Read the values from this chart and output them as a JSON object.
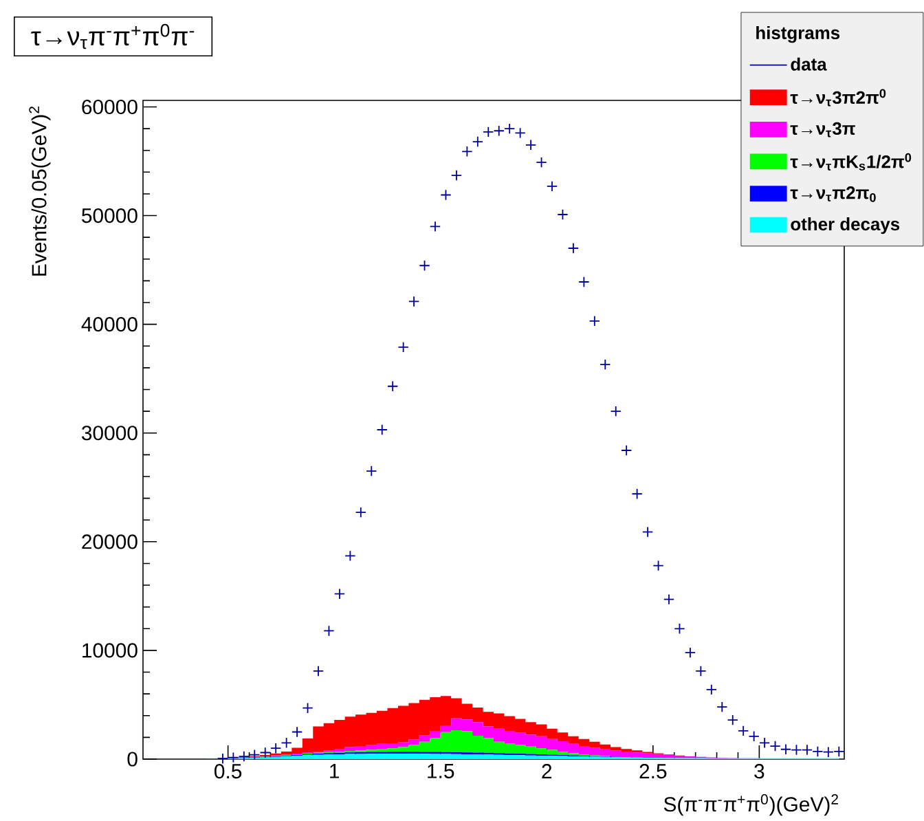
{
  "chart_data": {
    "type": "area",
    "title": "τ→ν$_{τ}$π$^{-}$π$^{+}$π$^{0}$π$^{-}$",
    "xlabel": "S(π$^{-}$π$^{-}$π$^{+}$π$^{0}$)(GeV)$^{2}$",
    "ylabel": "Events/0.05(GeV)$^{2}$",
    "legend_title": "histgrams",
    "legend": "top right",
    "stacked": true,
    "xlim": [
      0.1,
      3.4
    ],
    "ylim": [
      0,
      60600
    ],
    "xticks": [
      0.5,
      1,
      1.5,
      2,
      2.5,
      3
    ],
    "yticks": [
      0,
      10000,
      20000,
      30000,
      40000,
      50000,
      60000
    ],
    "x": [
      0.125,
      0.175,
      0.225,
      0.275,
      0.325,
      0.375,
      0.425,
      0.475,
      0.525,
      0.575,
      0.625,
      0.675,
      0.725,
      0.775,
      0.825,
      0.875,
      0.925,
      0.975,
      1.025,
      1.075,
      1.125,
      1.175,
      1.225,
      1.275,
      1.325,
      1.375,
      1.425,
      1.475,
      1.525,
      1.575,
      1.625,
      1.675,
      1.725,
      1.775,
      1.825,
      1.875,
      1.925,
      1.975,
      2.025,
      2.075,
      2.125,
      2.175,
      2.225,
      2.275,
      2.325,
      2.375,
      2.425,
      2.475,
      2.525,
      2.575,
      2.625,
      2.675,
      2.725,
      2.775,
      2.825,
      2.875,
      2.925,
      2.975,
      3.025,
      3.075,
      3.125,
      3.175,
      3.225,
      3.275,
      3.325,
      3.375
    ],
    "series": [
      {
        "name": "data",
        "type": "scatter",
        "marker": "cross",
        "color": "#000099",
        "values": [
          null,
          null,
          null,
          null,
          null,
          null,
          null,
          50,
          150,
          250,
          400,
          600,
          1000,
          1500,
          2500,
          4700,
          8100,
          11800,
          15200,
          18700,
          22700,
          26500,
          30300,
          34300,
          37900,
          42100,
          45400,
          49000,
          51900,
          53700,
          55900,
          56800,
          57700,
          57800,
          58000,
          57600,
          56500,
          54900,
          52700,
          50100,
          47000,
          43900,
          40300,
          36300,
          32000,
          28400,
          24400,
          20900,
          17800,
          14700,
          12000,
          9800,
          8100,
          6400,
          4800,
          3600,
          2600,
          2100,
          1500,
          1200,
          900,
          850,
          850,
          700,
          650,
          700
        ]
      },
      {
        "name": "other decays",
        "color": "#00ffff",
        "values": [
          0,
          0,
          0,
          0,
          0,
          0,
          20,
          50,
          80,
          90,
          120,
          160,
          210,
          270,
          320,
          360,
          400,
          430,
          450,
          470,
          480,
          490,
          500,
          500,
          500,
          500,
          490,
          480,
          470,
          460,
          450,
          430,
          420,
          400,
          380,
          360,
          340,
          320,
          300,
          280,
          260,
          240,
          220,
          200,
          180,
          160,
          140,
          120,
          110,
          100,
          90,
          90,
          90,
          80,
          80,
          80,
          80,
          80,
          80,
          80,
          80,
          80,
          80,
          80,
          80,
          80
        ]
      },
      {
        "name": "τ→ν$_{τ}$π2π$_{0}$",
        "color": "#0000ff",
        "values": [
          0,
          0,
          0,
          0,
          0,
          0,
          20,
          40,
          40,
          30,
          40,
          50,
          60,
          70,
          80,
          90,
          100,
          120,
          130,
          150,
          160,
          170,
          170,
          180,
          180,
          180,
          180,
          180,
          180,
          180,
          170,
          170,
          160,
          160,
          150,
          140,
          130,
          120,
          110,
          100,
          90,
          80,
          70,
          60,
          40,
          20,
          10,
          10,
          0,
          0,
          0,
          0,
          0,
          0,
          0,
          0,
          0,
          0,
          0,
          0,
          0,
          0,
          0,
          0,
          0,
          0
        ]
      },
      {
        "name": "τ→ν$_{τ}$πK$_{s}$1/2π$^{0}$",
        "color": "#00ff00",
        "values": [
          0,
          0,
          0,
          0,
          0,
          0,
          0,
          0,
          0,
          10,
          20,
          20,
          20,
          20,
          30,
          50,
          80,
          100,
          120,
          140,
          160,
          190,
          230,
          320,
          420,
          620,
          930,
          1280,
          1840,
          2020,
          1960,
          1550,
          1360,
          1040,
          920,
          800,
          680,
          560,
          440,
          320,
          200,
          130,
          60,
          20,
          0,
          0,
          0,
          0,
          0,
          0,
          0,
          0,
          0,
          0,
          0,
          0,
          0,
          0,
          0,
          0,
          0,
          0,
          0,
          0,
          0,
          0
        ]
      },
      {
        "name": "τ→ν$_{τ}$3π",
        "color": "#ff00ff",
        "values": [
          0,
          0,
          0,
          0,
          0,
          0,
          0,
          0,
          0,
          20,
          20,
          30,
          40,
          60,
          70,
          100,
          120,
          150,
          200,
          340,
          400,
          450,
          500,
          450,
          450,
          500,
          600,
          660,
          610,
          1090,
          1070,
          1250,
          1060,
          1200,
          1150,
          1150,
          1100,
          1100,
          1000,
          950,
          850,
          750,
          700,
          620,
          580,
          520,
          470,
          420,
          350,
          280,
          230,
          160,
          110,
          80,
          50,
          30,
          20,
          10,
          0,
          0,
          0,
          0,
          0,
          0,
          0,
          0
        ]
      },
      {
        "name": "τ→ν$_{τ}$3π2π$^{0}$",
        "color": "#ff0000",
        "values": [
          0,
          0,
          0,
          0,
          0,
          0,
          0,
          0,
          20,
          50,
          80,
          120,
          190,
          280,
          550,
          1300,
          2300,
          2500,
          2700,
          2800,
          2900,
          2950,
          3050,
          3250,
          3350,
          3350,
          3250,
          3100,
          2700,
          1850,
          1450,
          1350,
          1350,
          1400,
          1350,
          1250,
          1150,
          1100,
          950,
          800,
          700,
          650,
          550,
          450,
          300,
          230,
          180,
          120,
          80,
          40,
          20,
          0,
          0,
          0,
          0,
          0,
          0,
          0,
          0,
          0,
          0,
          0,
          0,
          0,
          0,
          0
        ]
      }
    ]
  }
}
